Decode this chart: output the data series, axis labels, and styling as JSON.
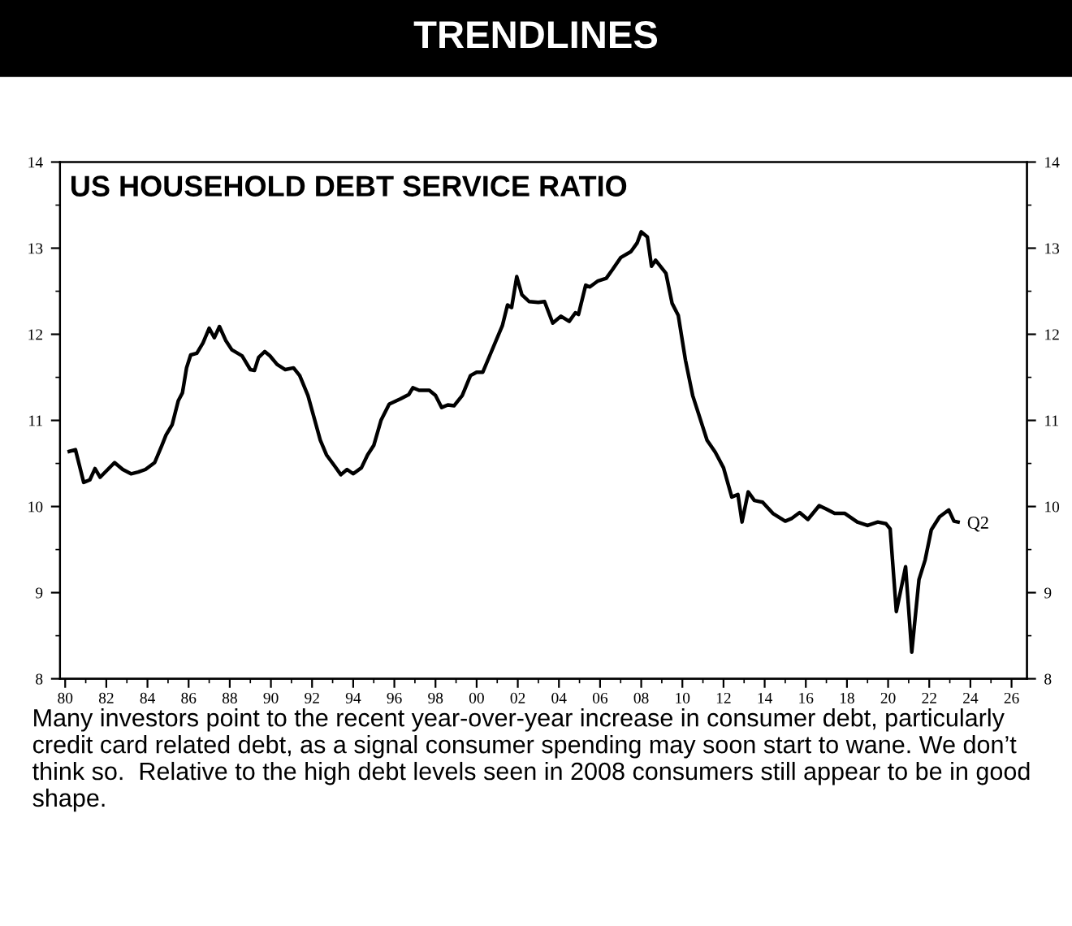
{
  "chart_data": {
    "type": "line",
    "title": "TRENDLINES",
    "subtitle": "US HOUSEHOLD DEBT SERVICE RATIO",
    "annotations": [
      {
        "text": "Q2",
        "x": 2023.4,
        "y": 9.82
      },
      "Many investors point to the recent year-over-year increase in consumer debt, particularly credit card related debt, as a signal consumer spending may soon start to wane. We don’t think so.  Relative to the high debt levels seen in 2008 consumers still appear to be in good shape."
    ],
    "series": [
      {
        "color": "#000000",
        "x": [
          1980.2,
          1980.5,
          1980.9,
          1981.2,
          1981.45,
          1981.7,
          1982.4,
          1982.8,
          1983.2,
          1983.55,
          1983.9,
          1984.35,
          1984.7,
          1984.9,
          1985.2,
          1985.5,
          1985.7,
          1985.9,
          1986.1,
          1986.4,
          1986.7,
          1987.0,
          1987.25,
          1987.5,
          1987.8,
          1988.1,
          1988.6,
          1989.0,
          1989.2,
          1989.4,
          1989.7,
          1989.95,
          1990.3,
          1990.7,
          1991.1,
          1991.4,
          1991.8,
          1992.1,
          1992.4,
          1992.7,
          1993.1,
          1993.4,
          1993.7,
          1994.0,
          1994.4,
          1994.7,
          1995.0,
          1995.35,
          1995.75,
          1996.3,
          1996.7,
          1996.9,
          1997.2,
          1997.7,
          1998.0,
          1998.3,
          1998.6,
          1998.9,
          1999.3,
          1999.7,
          2000.0,
          2000.3,
          2000.65,
          2001.0,
          2001.25,
          2001.5,
          2001.7,
          2001.95,
          2002.2,
          2002.55,
          2003.0,
          2003.3,
          2003.7,
          2004.1,
          2004.5,
          2004.8,
          2004.95,
          2005.3,
          2005.5,
          2005.9,
          2006.3,
          2006.6,
          2007.0,
          2007.5,
          2007.8,
          2008.0,
          2008.3,
          2008.5,
          2008.7,
          2009.2,
          2009.5,
          2009.8,
          2010.15,
          2010.5,
          2010.85,
          2011.2,
          2011.6,
          2012.0,
          2012.4,
          2012.7,
          2012.9,
          2013.2,
          2013.5,
          2013.9,
          2014.4,
          2015.0,
          2015.3,
          2015.7,
          2016.1,
          2016.65,
          2017.0,
          2017.4,
          2017.9,
          2018.5,
          2019.0,
          2019.5,
          2019.9,
          2020.1,
          2020.4,
          2020.85,
          2021.15,
          2021.5,
          2021.8,
          2022.1,
          2022.5,
          2022.95,
          2023.2,
          2023.4
        ],
        "values": [
          10.64,
          10.66,
          10.28,
          10.31,
          10.44,
          10.34,
          10.51,
          10.43,
          10.38,
          10.4,
          10.43,
          10.51,
          10.71,
          10.83,
          10.95,
          11.23,
          11.32,
          11.61,
          11.76,
          11.78,
          11.9,
          12.07,
          11.96,
          12.09,
          11.93,
          11.82,
          11.75,
          11.59,
          11.58,
          11.73,
          11.8,
          11.75,
          11.65,
          11.59,
          11.61,
          11.52,
          11.29,
          11.03,
          10.77,
          10.6,
          10.47,
          10.37,
          10.43,
          10.38,
          10.45,
          10.6,
          10.71,
          11.0,
          11.19,
          11.25,
          11.3,
          11.38,
          11.35,
          11.35,
          11.29,
          11.15,
          11.18,
          11.17,
          11.29,
          11.52,
          11.56,
          11.56,
          11.76,
          11.96,
          12.1,
          12.34,
          12.31,
          12.67,
          12.46,
          12.38,
          12.37,
          12.38,
          12.13,
          12.21,
          12.15,
          12.25,
          12.23,
          12.57,
          12.55,
          12.62,
          12.65,
          12.75,
          12.89,
          12.96,
          13.06,
          13.19,
          13.13,
          12.79,
          12.86,
          12.71,
          12.36,
          12.22,
          11.7,
          11.29,
          11.03,
          10.77,
          10.63,
          10.45,
          10.11,
          10.14,
          9.82,
          10.17,
          10.07,
          10.05,
          9.92,
          9.83,
          9.86,
          9.93,
          9.85,
          10.01,
          9.97,
          9.92,
          9.92,
          9.82,
          9.78,
          9.82,
          9.8,
          9.74,
          8.78,
          9.3,
          8.31,
          9.15,
          9.38,
          9.73,
          9.88,
          9.96,
          9.83,
          9.82
        ]
      }
    ],
    "xlim": [
      1979.75,
      2026.75
    ],
    "xticks": [
      {
        "value": 1980,
        "label": "80"
      },
      {
        "value": 1982,
        "label": "82"
      },
      {
        "value": 1984,
        "label": "84"
      },
      {
        "value": 1986,
        "label": "86"
      },
      {
        "value": 1988,
        "label": "88"
      },
      {
        "value": 1990,
        "label": "90"
      },
      {
        "value": 1992,
        "label": "92"
      },
      {
        "value": 1994,
        "label": "94"
      },
      {
        "value": 1996,
        "label": "96"
      },
      {
        "value": 1998,
        "label": "98"
      },
      {
        "value": 2000,
        "label": "00"
      },
      {
        "value": 2002,
        "label": "02"
      },
      {
        "value": 2004,
        "label": "04"
      },
      {
        "value": 2006,
        "label": "06"
      },
      {
        "value": 2008,
        "label": "08"
      },
      {
        "value": 2010,
        "label": "10"
      },
      {
        "value": 2012,
        "label": "12"
      },
      {
        "value": 2014,
        "label": "14"
      },
      {
        "value": 2016,
        "label": "16"
      },
      {
        "value": 2018,
        "label": "18"
      },
      {
        "value": 2020,
        "label": "20"
      },
      {
        "value": 2022,
        "label": "22"
      },
      {
        "value": 2024,
        "label": "24"
      },
      {
        "value": 2026,
        "label": "26"
      }
    ],
    "ylim": [
      8,
      14
    ],
    "yticks": [
      8,
      9,
      10,
      11,
      12,
      13,
      14
    ],
    "y2lim": [
      8,
      14
    ],
    "y2ticks": [
      8,
      9,
      10,
      11,
      12,
      13,
      14
    ],
    "grid": false,
    "legend": false,
    "marker": "none",
    "line_style": "solid"
  }
}
